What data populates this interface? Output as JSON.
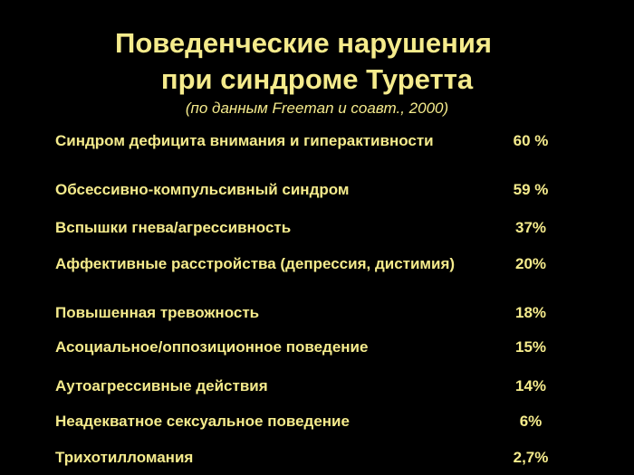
{
  "slide": {
    "title_line1": "Поведенческие нарушения",
    "title_line2": "при синдроме Туретта",
    "subtitle": "(по данным  Freeman и соавт., 2000)"
  },
  "rows": [
    {
      "label": "Синдром дефицита внимания и гиперактивности",
      "value": "60 %"
    },
    {
      "label": "Обсессивно-компульсивный синдром",
      "value": "59 %"
    },
    {
      "label": "Вспышки гнева/агрессивность",
      "value": "37%"
    },
    {
      "label": "Аффективные расстройства (депрессия, дистимия)",
      "value": "20%"
    },
    {
      "label": "Повышенная тревожность",
      "value": "18%"
    },
    {
      "label": "Асоциальное/оппозиционное поведение",
      "value": "15%"
    },
    {
      "label": "Аутоагрессивные действия",
      "value": "14%"
    },
    {
      "label": "Неадекватное сексуальное поведение",
      "value": "6%"
    },
    {
      "label": "Трихотилломания",
      "value": "2,7%"
    }
  ]
}
